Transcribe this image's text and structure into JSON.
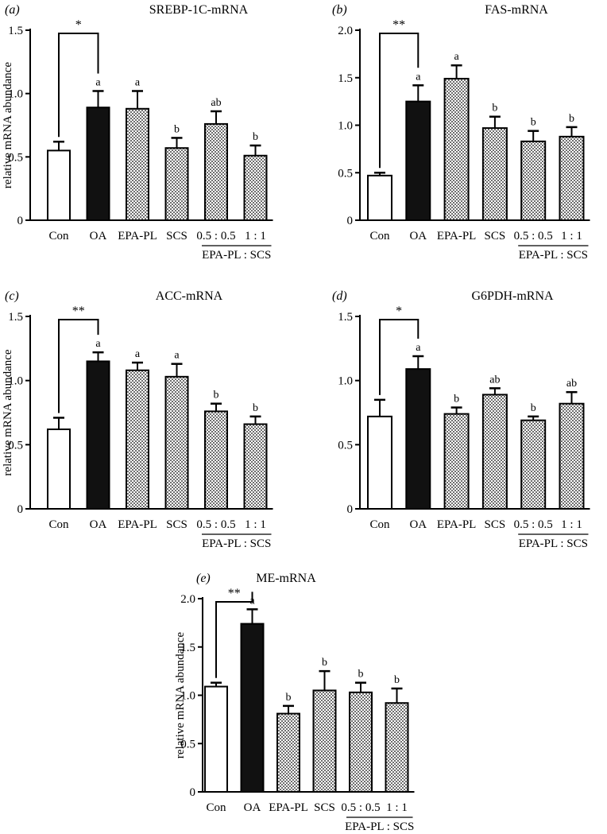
{
  "figure": {
    "name": "mrna-bar-charts"
  },
  "patterns": {
    "fill_hatch": "#bfbfbf",
    "fill_solid": "#111111",
    "fill_open": "#ffffff",
    "stroke": "#000000"
  },
  "chart_data": [
    {
      "panel": "(a)",
      "title": "SREBP-1C-mRNA",
      "type": "bar",
      "ylabel": "relative mRNA abundance",
      "ylim": [
        0,
        1.5
      ],
      "yticks": [
        "0",
        "0.5",
        "1.0",
        "1.5"
      ],
      "ytick_values": [
        0,
        0.5,
        1.0,
        1.5
      ],
      "categories": [
        "Con",
        "OA",
        "EPA-PL",
        "SCS",
        "0.5 : 0.5",
        "1 : 1"
      ],
      "group_label": "EPA-PL : SCS",
      "values": [
        0.55,
        0.89,
        0.88,
        0.57,
        0.76,
        0.51
      ],
      "errors": [
        0.07,
        0.13,
        0.14,
        0.08,
        0.1,
        0.08
      ],
      "letters": [
        "",
        "a",
        "a",
        "b",
        "ab",
        "b"
      ],
      "significance": "*",
      "fills": [
        "open",
        "solid",
        "hatch",
        "hatch",
        "hatch",
        "hatch"
      ]
    },
    {
      "panel": "(b)",
      "title": "FAS-mRNA",
      "type": "bar",
      "ylabel": "",
      "ylim": [
        0,
        2.0
      ],
      "yticks": [
        "0",
        "0.5",
        "1.0",
        "1.5",
        "2.0"
      ],
      "ytick_values": [
        0,
        0.5,
        1.0,
        1.5,
        2.0
      ],
      "categories": [
        "Con",
        "OA",
        "EPA-PL",
        "SCS",
        "0.5 : 0.5",
        "1 : 1"
      ],
      "group_label": "EPA-PL : SCS",
      "values": [
        0.47,
        1.25,
        1.49,
        0.97,
        0.83,
        0.88
      ],
      "errors": [
        0.03,
        0.17,
        0.14,
        0.12,
        0.11,
        0.1
      ],
      "letters": [
        "",
        "a",
        "a",
        "b",
        "b",
        "b"
      ],
      "significance": "**",
      "fills": [
        "open",
        "solid",
        "hatch",
        "hatch",
        "hatch",
        "hatch"
      ]
    },
    {
      "panel": "(c)",
      "title": "ACC-mRNA",
      "type": "bar",
      "ylabel": "relative mRNA abundance",
      "ylim": [
        0,
        1.5
      ],
      "yticks": [
        "0",
        "0.5",
        "1.0",
        "1.5"
      ],
      "ytick_values": [
        0,
        0.5,
        1.0,
        1.5
      ],
      "categories": [
        "Con",
        "OA",
        "EPA-PL",
        "SCS",
        "0.5 : 0.5",
        "1 : 1"
      ],
      "group_label": "EPA-PL : SCS",
      "values": [
        0.62,
        1.15,
        1.08,
        1.03,
        0.76,
        0.66
      ],
      "errors": [
        0.09,
        0.07,
        0.06,
        0.1,
        0.06,
        0.06
      ],
      "letters": [
        "",
        "a",
        "a",
        "a",
        "b",
        "b"
      ],
      "significance": "**",
      "fills": [
        "open",
        "solid",
        "hatch",
        "hatch",
        "hatch",
        "hatch"
      ]
    },
    {
      "panel": "(d)",
      "title": "G6PDH-mRNA",
      "type": "bar",
      "ylabel": "",
      "ylim": [
        0,
        1.5
      ],
      "yticks": [
        "0",
        "0.5",
        "1.0",
        "1.5"
      ],
      "ytick_values": [
        0,
        0.5,
        1.0,
        1.5
      ],
      "categories": [
        "Con",
        "OA",
        "EPA-PL",
        "SCS",
        "0.5 : 0.5",
        "1 : 1"
      ],
      "group_label": "EPA-PL : SCS",
      "values": [
        0.72,
        1.09,
        0.74,
        0.89,
        0.69,
        0.82
      ],
      "errors": [
        0.13,
        0.1,
        0.05,
        0.05,
        0.03,
        0.09
      ],
      "letters": [
        "",
        "a",
        "b",
        "ab",
        "b",
        "ab"
      ],
      "significance": "*",
      "fills": [
        "open",
        "solid",
        "hatch",
        "hatch",
        "hatch",
        "hatch"
      ]
    },
    {
      "panel": "(e)",
      "title": "ME-mRNA",
      "type": "bar",
      "ylabel": "relative mRNA abundance",
      "ylim": [
        0,
        2.0
      ],
      "yticks": [
        "0",
        "0.5",
        "1.0",
        "1.5",
        "2.0"
      ],
      "ytick_values": [
        0,
        0.5,
        1.0,
        1.5,
        2.0
      ],
      "categories": [
        "Con",
        "OA",
        "EPA-PL",
        "SCS",
        "0.5 : 0.5",
        "1 : 1"
      ],
      "group_label": "EPA-PL : SCS",
      "values": [
        1.09,
        1.74,
        0.81,
        1.05,
        1.03,
        0.92
      ],
      "errors": [
        0.04,
        0.15,
        0.08,
        0.2,
        0.1,
        0.15
      ],
      "letters": [
        "",
        "a",
        "b",
        "b",
        "b",
        "b"
      ],
      "significance": "**",
      "fills": [
        "open",
        "solid",
        "hatch",
        "hatch",
        "hatch",
        "hatch"
      ]
    }
  ]
}
